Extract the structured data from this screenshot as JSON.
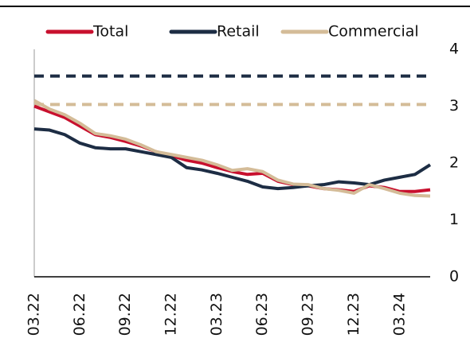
{
  "chart_data": {
    "type": "line",
    "categories": [
      "03.22",
      null,
      null,
      "06.22",
      null,
      null,
      "09.22",
      null,
      null,
      "12.22",
      null,
      null,
      "03.23",
      null,
      null,
      "06.23",
      null,
      null,
      "09.23",
      null,
      null,
      "12.23",
      null,
      null,
      "03.24",
      null,
      null
    ],
    "series": [
      {
        "name": "Total",
        "color": "#c8102e",
        "values": [
          3.0,
          2.9,
          2.8,
          2.65,
          2.5,
          2.45,
          2.38,
          2.3,
          2.2,
          2.13,
          2.05,
          2.0,
          1.92,
          1.85,
          1.8,
          1.82,
          1.68,
          1.62,
          1.6,
          1.55,
          1.53,
          1.5,
          1.6,
          1.57,
          1.5,
          1.5,
          1.53
        ]
      },
      {
        "name": "Retail",
        "color": "#1d2d44",
        "values": [
          2.6,
          2.58,
          2.5,
          2.35,
          2.27,
          2.25,
          2.25,
          2.2,
          2.15,
          2.1,
          1.92,
          1.88,
          1.82,
          1.75,
          1.68,
          1.58,
          1.55,
          1.57,
          1.6,
          1.62,
          1.67,
          1.65,
          1.62,
          1.7,
          1.75,
          1.8,
          1.97
        ]
      },
      {
        "name": "Commercial",
        "color": "#d4bc98",
        "values": [
          3.1,
          2.95,
          2.85,
          2.7,
          2.52,
          2.48,
          2.42,
          2.32,
          2.2,
          2.15,
          2.1,
          2.05,
          1.97,
          1.87,
          1.9,
          1.85,
          1.7,
          1.63,
          1.62,
          1.55,
          1.52,
          1.47,
          1.62,
          1.55,
          1.47,
          1.43,
          1.42
        ]
      }
    ],
    "reference_lines": [
      {
        "value": 3.53,
        "color": "#1d2d44"
      },
      {
        "value": 3.03,
        "color": "#d4bc98"
      }
    ],
    "ylim": [
      0,
      4
    ],
    "yticks": [
      0,
      1,
      2,
      3,
      4
    ],
    "legend": "top"
  }
}
